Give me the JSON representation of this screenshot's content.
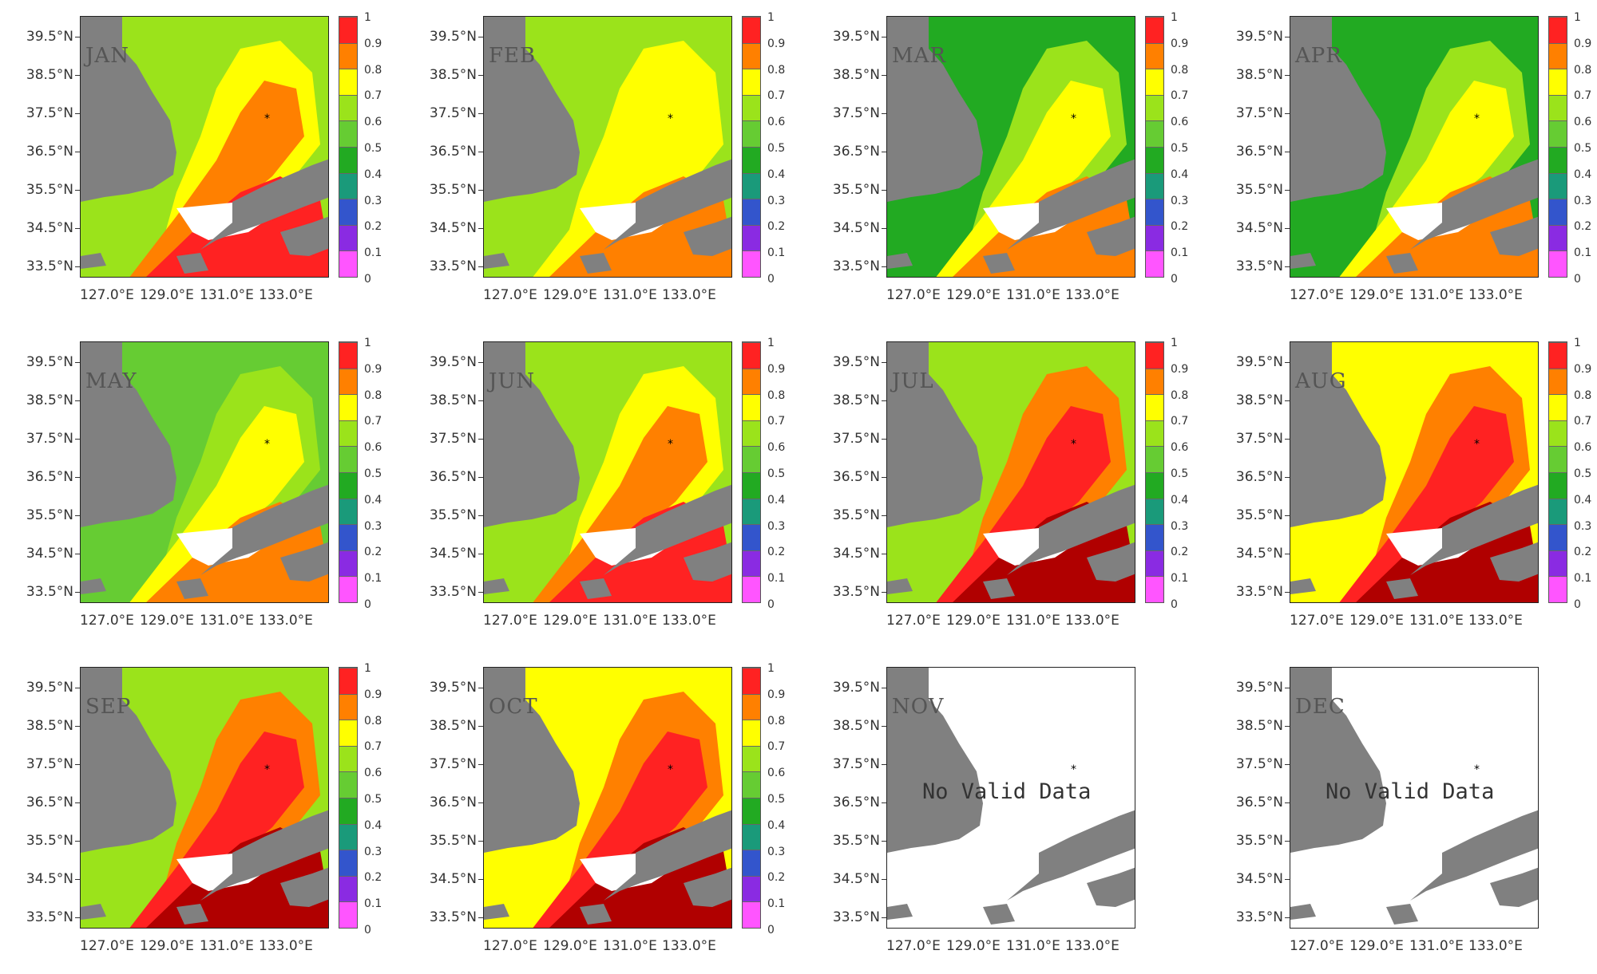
{
  "lat_labels": [
    "39.5°N",
    "38.5°N",
    "37.5°N",
    "36.5°N",
    "35.5°N",
    "34.5°N",
    "33.5°N"
  ],
  "lon_labels": [
    "127.0°E",
    "129.0°E",
    "131.0°E",
    "133.0°E"
  ],
  "colorbar_ticks": [
    "1",
    "0.9",
    "0.8",
    "0.7",
    "0.6",
    "0.5",
    "0.4",
    "0.3",
    "0.2",
    "0.1",
    "0"
  ],
  "colorbar_colors": [
    "#ff55ff",
    "#8a2be2",
    "#3355cc",
    "#1a9a7a",
    "#22aa22",
    "#66cc33",
    "#9be31b",
    "#ffff00",
    "#ff8000",
    "#ff2222",
    "#b00000"
  ],
  "land_color": "#808080",
  "nodata_text": "No Valid Data",
  "months": [
    {
      "label": "JAN",
      "base": "#9be31b",
      "fills": [
        "#ffff00",
        "#ff8000",
        "#ff2222"
      ],
      "has_data": true
    },
    {
      "label": "FEB",
      "base": "#9be31b",
      "fills": [
        "#ffff00",
        "#ffff00",
        "#ff8000"
      ],
      "has_data": true
    },
    {
      "label": "MAR",
      "base": "#22aa22",
      "fills": [
        "#9be31b",
        "#ffff00",
        "#ff8000"
      ],
      "has_data": true
    },
    {
      "label": "APR",
      "base": "#22aa22",
      "fills": [
        "#9be31b",
        "#ffff00",
        "#ff8000"
      ],
      "has_data": true
    },
    {
      "label": "MAY",
      "base": "#66cc33",
      "fills": [
        "#9be31b",
        "#ffff00",
        "#ff8000"
      ],
      "has_data": true
    },
    {
      "label": "JUN",
      "base": "#9be31b",
      "fills": [
        "#ffff00",
        "#ff8000",
        "#ff2222"
      ],
      "has_data": true
    },
    {
      "label": "JUL",
      "base": "#9be31b",
      "fills": [
        "#ff8000",
        "#ff2222",
        "#b00000"
      ],
      "has_data": true
    },
    {
      "label": "AUG",
      "base": "#ffff00",
      "fills": [
        "#ff8000",
        "#ff2222",
        "#b00000"
      ],
      "has_data": true
    },
    {
      "label": "SEP",
      "base": "#9be31b",
      "fills": [
        "#ff8000",
        "#ff2222",
        "#b00000"
      ],
      "has_data": true
    },
    {
      "label": "OCT",
      "base": "#ffff00",
      "fills": [
        "#ff8000",
        "#ff2222",
        "#b00000"
      ],
      "has_data": true
    },
    {
      "label": "NOV",
      "base": "#ffffff",
      "fills": [],
      "has_data": false
    },
    {
      "label": "DEC",
      "base": "#ffffff",
      "fills": [],
      "has_data": false
    }
  ]
}
